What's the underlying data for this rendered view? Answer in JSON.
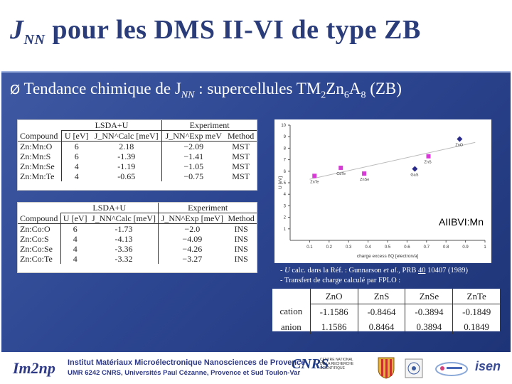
{
  "title": {
    "main": "J",
    "sub": "NN",
    "rest": " pour les DMS II-VI de type ZB"
  },
  "bullet": {
    "arrow": "Ø",
    "text1": " Tendance chimique de J",
    "sub1": "NN",
    "text2": " : supercellules TM",
    "sub2": "2",
    "text3": "Zn",
    "sub3": "6",
    "text4": "A",
    "sub4": "8",
    "text5": " (ZB)"
  },
  "table1": {
    "group_left": "LSDA+U",
    "group_right": "Experiment",
    "headers": [
      "Compound",
      "U [eV]",
      "J_NN^Calc [meV]",
      "J_NN^Exp meV",
      "Method"
    ],
    "rows": [
      [
        "Zn:Mn:O",
        "6",
        "2.18",
        "−2.09",
        "MST"
      ],
      [
        "Zn:Mn:S",
        "6",
        "-1.39",
        "−1.41",
        "MST"
      ],
      [
        "Zn:Mn:Se",
        "4",
        "-1.19",
        "−1.05",
        "MST"
      ],
      [
        "Zn:Mn:Te",
        "4",
        "-0.65",
        "−0.75",
        "MST"
      ]
    ]
  },
  "table2": {
    "group_left": "LSDA+U",
    "group_right": "Experiment",
    "headers": [
      "Compound",
      "U [eV]",
      "J_NN^Calc [meV]",
      "J_NN^Exp [meV]",
      "Method"
    ],
    "rows": [
      [
        "Zn:Co:O",
        "6",
        "-1.73",
        "−2.0",
        "INS"
      ],
      [
        "Zn:Co:S",
        "4",
        "-4.13",
        "−4.09",
        "INS"
      ],
      [
        "Zn:Co:Se",
        "4",
        "-3.36",
        "−4.26",
        "INS"
      ],
      [
        "Zn:Co:Te",
        "4",
        "-3.32",
        "−3.27",
        "INS"
      ]
    ]
  },
  "chart_data": {
    "type": "scatter",
    "xlabel": "charge excess δQ [electron/a]",
    "ylabel": "U [eV]",
    "xlim": [
      0,
      1
    ],
    "ylim": [
      0,
      10
    ],
    "x_ticks": [
      "0.1",
      "0.2",
      "0.3",
      "0.4",
      "0.5",
      "0.6",
      "0.7",
      "0.8",
      "0.9",
      "1"
    ],
    "y_ticks": [
      "1",
      "2",
      "3",
      "4",
      "5",
      "6",
      "7",
      "8",
      "9",
      "10"
    ],
    "annotation": "AIIBVI:Mn",
    "series": [
      {
        "marker": "square",
        "color": "#d63bd6",
        "points": [
          {
            "label": "ZnTe",
            "x": 0.125,
            "y": 5.6
          },
          {
            "label": "CdTe",
            "x": 0.26,
            "y": 6.3
          },
          {
            "label": "ZnSe",
            "x": 0.38,
            "y": 5.8
          },
          {
            "label": "ZnS",
            "x": 0.71,
            "y": 7.3
          }
        ]
      },
      {
        "marker": "diamond",
        "color": "#2a2a8a",
        "points": [
          {
            "label": "ZnO",
            "x": 0.87,
            "y": 8.8
          },
          {
            "label": "GaS",
            "x": 0.64,
            "y": 6.2
          }
        ]
      }
    ],
    "trend": {
      "x1": 0.1,
      "y1": 5.3,
      "x2": 0.95,
      "y2": 8.5,
      "color": "#bbbbbb"
    }
  },
  "notes": {
    "line1_pre": "- ",
    "line1_u": "U",
    "line1_mid": " calc. dans la Réf. : Gunnarson ",
    "line1_etal": "et al.",
    "line1_post": ", PRB ",
    "line1_vol": "40",
    "line1_end": " 10407 (1989)",
    "line2": "- Transfert de charge calculé par FPLO :"
  },
  "charge_table": {
    "headers": [
      "ZnO",
      "ZnS",
      "ZnSe",
      "ZnTe"
    ],
    "rows": [
      {
        "label": "cation",
        "values": [
          "-1.1586",
          "-0.8464",
          "-0.3894",
          "-0.1849"
        ]
      },
      {
        "label": "anion",
        "values": [
          "1.1586",
          "0.8464",
          "0.3894",
          "0.1849"
        ]
      }
    ]
  },
  "footer": {
    "logo_text": "Im2np",
    "institute_line1": "Institut Matériaux Microélectronique Nanosciences de Provence",
    "institute_line2": "UMR 6242 CNRS, Universités Paul Cézanne, Provence et Sud Toulon-Var",
    "cnrs": "CNRS",
    "cnrs_sub": "CENTRE NATIONAL DE LA RECHERCHE SCIENTIFIQUE",
    "isen": "isen"
  },
  "colors": {
    "title": "#2a3d7a",
    "panel_bg": "#2d4691",
    "accent_pink": "#d63bd6",
    "accent_navy": "#2a2a8a"
  }
}
